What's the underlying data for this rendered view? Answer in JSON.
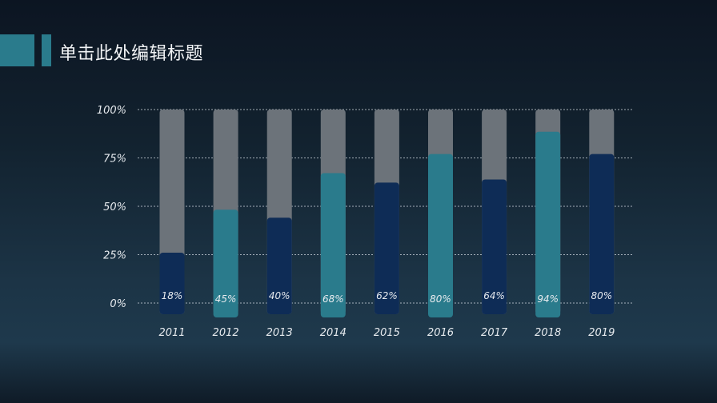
{
  "header": {
    "title": "单击此处编辑标题"
  },
  "chart_data": {
    "type": "bar",
    "categories": [
      "2011",
      "2012",
      "2013",
      "2014",
      "2015",
      "2016",
      "2017",
      "2018",
      "2019"
    ],
    "values": [
      18,
      45,
      40,
      68,
      62,
      80,
      64,
      94,
      80
    ],
    "data_labels": [
      "18%",
      "45%",
      "40%",
      "68%",
      "62%",
      "80%",
      "64%",
      "94%",
      "80%"
    ],
    "ylim": [
      0,
      100
    ],
    "yticks": [
      "0%",
      "25%",
      "50%",
      "75%",
      "100%"
    ],
    "grid": true,
    "background_bar_value": 100,
    "colors": {
      "navy": "#0e2c56",
      "teal": "#2a7b8c",
      "track": "#6c737a"
    },
    "bar_colors": [
      "navy",
      "teal",
      "navy",
      "teal",
      "navy",
      "teal",
      "navy",
      "teal",
      "navy"
    ]
  }
}
